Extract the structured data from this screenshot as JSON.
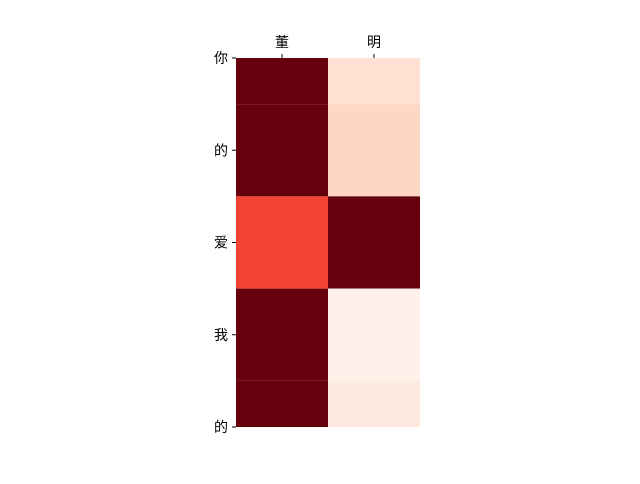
{
  "chart_data": {
    "type": "heatmap",
    "colormap": "Reds",
    "x_labels": [
      "董",
      "明"
    ],
    "y_labels": [
      "你",
      "的",
      "爱",
      "我",
      "的"
    ],
    "rows": [
      {
        "y_start": 0,
        "y_end": 0.5,
        "values": [
          1.0,
          0.12
        ]
      },
      {
        "y_start": 0.5,
        "y_end": 1.5,
        "values": [
          1.0,
          0.16
        ]
      },
      {
        "y_start": 1.5,
        "y_end": 2.5,
        "values": [
          0.6,
          1.0
        ]
      },
      {
        "y_start": 2.5,
        "y_end": 3.5,
        "values": [
          1.0,
          0.03
        ]
      },
      {
        "y_start": 3.5,
        "y_end": 4,
        "values": [
          1.0,
          0.07
        ]
      }
    ],
    "x_tick_position": "top",
    "xlim": [
      -0.5,
      1.5
    ],
    "ylim": [
      0,
      4
    ],
    "grid": false,
    "colors": {
      "low": "#fff5f0",
      "high": "#67000d"
    }
  }
}
